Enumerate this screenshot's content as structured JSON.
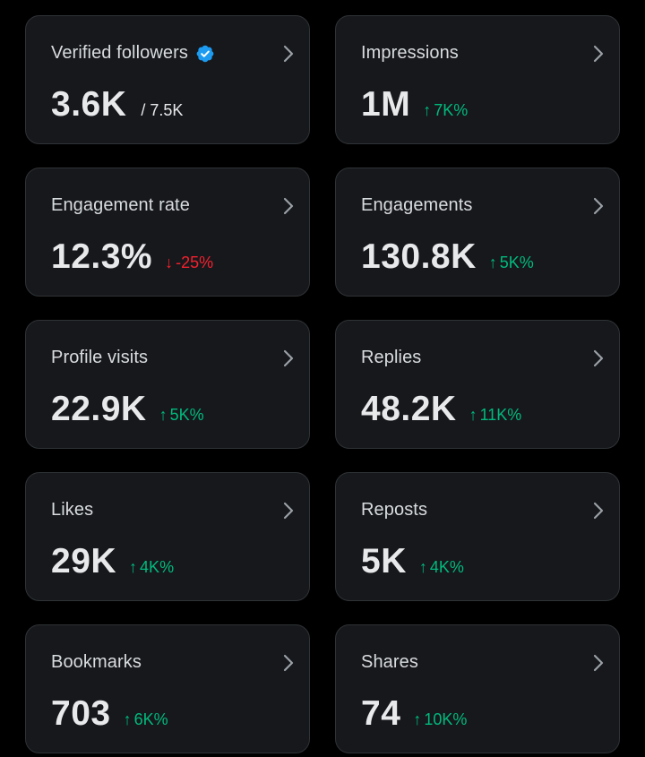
{
  "cards": [
    {
      "label": "Verified followers",
      "value": "3.6K",
      "sub": "/ 7.5K"
    },
    {
      "label": "Impressions",
      "value": "1M",
      "delta": "7K%",
      "delta_arrow": "↑",
      "trend": "up"
    },
    {
      "label": "Engagement rate",
      "value": "12.3%",
      "delta": "-25%",
      "delta_arrow": "↓",
      "trend": "down"
    },
    {
      "label": "Engagements",
      "value": "130.8K",
      "delta": "5K%",
      "delta_arrow": "↑",
      "trend": "up"
    },
    {
      "label": "Profile visits",
      "value": "22.9K",
      "delta": "5K%",
      "delta_arrow": "↑",
      "trend": "up"
    },
    {
      "label": "Replies",
      "value": "48.2K",
      "delta": "11K%",
      "delta_arrow": "↑",
      "trend": "up"
    },
    {
      "label": "Likes",
      "value": "29K",
      "delta": "4K%",
      "delta_arrow": "↑",
      "trend": "up"
    },
    {
      "label": "Reposts",
      "value": "5K",
      "delta": "4K%",
      "delta_arrow": "↑",
      "trend": "up"
    },
    {
      "label": "Bookmarks",
      "value": "703",
      "delta": "6K%",
      "delta_arrow": "↑",
      "trend": "up"
    },
    {
      "label": "Shares",
      "value": "74",
      "delta": "10K%",
      "delta_arrow": "↑",
      "trend": "up"
    }
  ],
  "colors": {
    "background": "#000000",
    "card": "#16181c",
    "border": "#2f3336",
    "up": "#00ba7c",
    "down": "#f4212e",
    "verified": "#1d9bf0"
  },
  "icons": {
    "verified": "verified-badge-icon",
    "chevron": "chevron-right-icon",
    "up": "arrow-up-icon",
    "down": "arrow-down-icon"
  }
}
